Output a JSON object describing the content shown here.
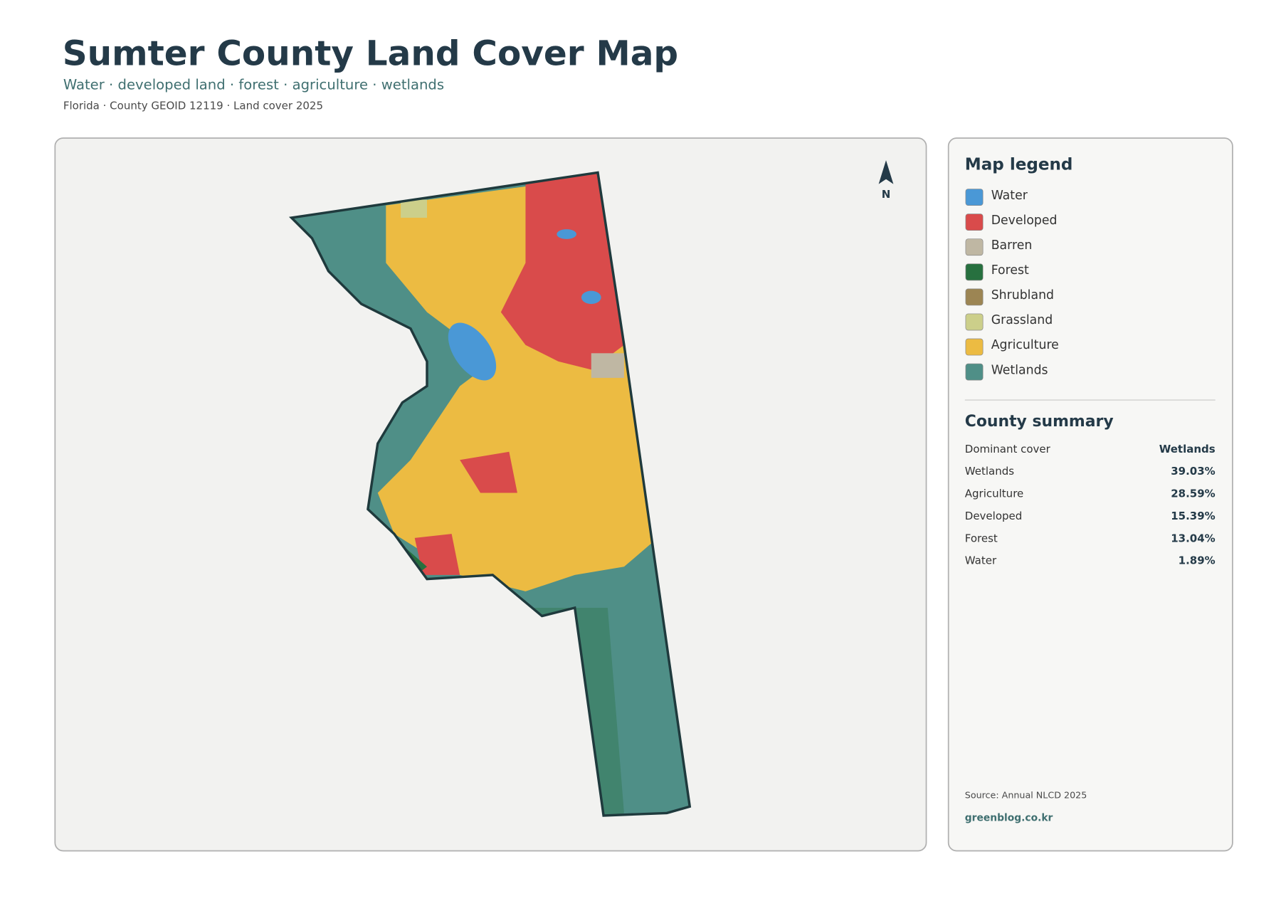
{
  "header": {
    "title": "Sumter County Land Cover Map",
    "subtitle": "Water · developed land · forest · agriculture · wetlands",
    "meta": "Florida · County GEOID 12119 · Land cover 2025"
  },
  "map": {
    "north_label": "N"
  },
  "legend": {
    "title": "Map legend",
    "items": [
      {
        "label": "Water",
        "color": "#4a98d6"
      },
      {
        "label": "Developed",
        "color": "#d94b4b"
      },
      {
        "label": "Barren",
        "color": "#bfb7a3"
      },
      {
        "label": "Forest",
        "color": "#27703f"
      },
      {
        "label": "Shrubland",
        "color": "#9c8553"
      },
      {
        "label": "Grassland",
        "color": "#cccf8a"
      },
      {
        "label": "Agriculture",
        "color": "#ecbb42"
      },
      {
        "label": "Wetlands",
        "color": "#4f8f87"
      }
    ]
  },
  "summary": {
    "title": "County summary",
    "rows": [
      [
        "Dominant cover",
        "Wetlands"
      ],
      [
        "Wetlands",
        "39.03%"
      ],
      [
        "Agriculture",
        "28.59%"
      ],
      [
        "Developed",
        "15.39%"
      ],
      [
        "Forest",
        "13.04%"
      ],
      [
        "Water",
        "1.89%"
      ]
    ]
  },
  "footer": {
    "source": "Source: Annual NLCD 2025",
    "site": "greenblog.co.kr"
  }
}
